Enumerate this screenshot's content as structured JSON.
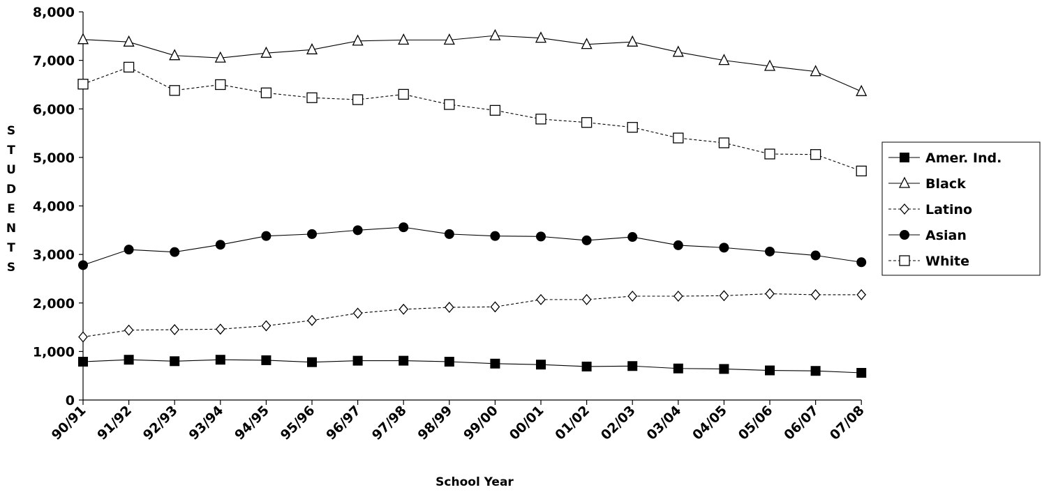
{
  "chart_data": {
    "type": "line",
    "title": "",
    "xlabel": "School Year",
    "ylabel": "STUDENTS",
    "ylim": [
      0,
      8000
    ],
    "y_ticks": [
      "0",
      "1,000",
      "2,000",
      "3,000",
      "4,000",
      "5,000",
      "6,000",
      "7,000",
      "8,000"
    ],
    "y_tick_values": [
      0,
      1000,
      2000,
      3000,
      4000,
      5000,
      6000,
      7000,
      8000
    ],
    "grid": false,
    "legend_position": "right",
    "categories": [
      "90/91",
      "91/92",
      "92/93",
      "93/94",
      "94/95",
      "95/96",
      "96/97",
      "97/98",
      "98/99",
      "99/00",
      "00/01",
      "01/02",
      "02/03",
      "03/04",
      "04/05",
      "05/06",
      "06/07",
      "07/08"
    ],
    "series": [
      {
        "name": "Amer. Ind.",
        "marker": "filled-square",
        "line": "solid",
        "color": "#000000",
        "values": [
          790,
          830,
          800,
          830,
          820,
          780,
          810,
          810,
          790,
          750,
          730,
          690,
          700,
          650,
          640,
          610,
          600,
          560
        ]
      },
      {
        "name": "Black",
        "marker": "open-triangle",
        "line": "solid",
        "color": "#000000",
        "values": [
          7430,
          7380,
          7100,
          7050,
          7150,
          7220,
          7400,
          7420,
          7420,
          7510,
          7460,
          7330,
          7380,
          7170,
          7000,
          6880,
          6770,
          6360
        ]
      },
      {
        "name": "Latino",
        "marker": "open-diamond",
        "line": "dashed",
        "color": "#000000",
        "values": [
          1300,
          1440,
          1450,
          1460,
          1530,
          1640,
          1790,
          1870,
          1910,
          1920,
          2070,
          2070,
          2140,
          2140,
          2150,
          2190,
          2170,
          2170
        ]
      },
      {
        "name": "Asian",
        "marker": "filled-circle",
        "line": "solid",
        "color": "#000000",
        "values": [
          2780,
          3100,
          3050,
          3200,
          3380,
          3420,
          3500,
          3560,
          3420,
          3380,
          3370,
          3290,
          3360,
          3190,
          3140,
          3060,
          2980,
          2840
        ]
      },
      {
        "name": "White",
        "marker": "open-square",
        "line": "dashed",
        "color": "#000000",
        "values": [
          6510,
          6860,
          6380,
          6500,
          6330,
          6230,
          6190,
          6300,
          6090,
          5970,
          5790,
          5720,
          5620,
          5400,
          5300,
          5070,
          5060,
          4720
        ]
      }
    ]
  }
}
